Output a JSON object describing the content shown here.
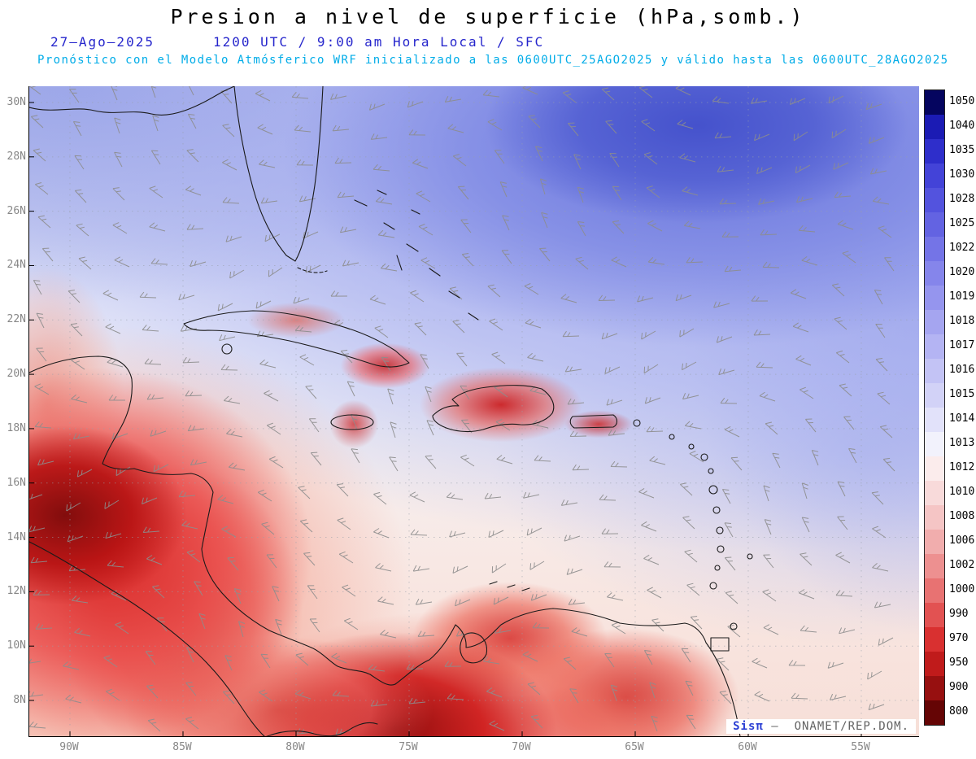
{
  "header": {
    "title": "Presion a nivel de superficie (hPa,somb.)",
    "date_label": "27–Ago–2025",
    "time_label": "1200 UTC / 9:00 am Hora Local / SFC",
    "forecast_line": "Pronóstico con el Modelo Atmósferico WRF inicializado a las 0600UTC_25AGO2025 y válido hasta las  0600UTC_28AGO2025"
  },
  "map": {
    "lat_labels": [
      "30N",
      "28N",
      "26N",
      "24N",
      "22N",
      "20N",
      "18N",
      "16N",
      "14N",
      "12N",
      "10N",
      "8N"
    ],
    "lon_labels": [
      "90W",
      "85W",
      "80W",
      "75W",
      "70W",
      "65W",
      "60W",
      "55W"
    ],
    "credit_prefix": "Sisπ",
    "credit_suffix": "—  ONAMET/REP.DOM."
  },
  "colorbar": {
    "unit": "hPa",
    "levels": [
      {
        "label": "1050",
        "color": "#05055f"
      },
      {
        "label": "1040",
        "color": "#1b1bb4"
      },
      {
        "label": "1035",
        "color": "#2e2ecb"
      },
      {
        "label": "1030",
        "color": "#4343d8"
      },
      {
        "label": "1028",
        "color": "#5353de"
      },
      {
        "label": "1025",
        "color": "#6363e2"
      },
      {
        "label": "1022",
        "color": "#7474e7"
      },
      {
        "label": "1020",
        "color": "#8585eb"
      },
      {
        "label": "1019",
        "color": "#9595ee"
      },
      {
        "label": "1018",
        "color": "#a5a5f0"
      },
      {
        "label": "1017",
        "color": "#b4b4f3"
      },
      {
        "label": "1016",
        "color": "#c3c3f5"
      },
      {
        "label": "1015",
        "color": "#d2d2f7"
      },
      {
        "label": "1014",
        "color": "#e2e2fa"
      },
      {
        "label": "1013",
        "color": "#f2f2fc"
      },
      {
        "label": "1012",
        "color": "#fbecec"
      },
      {
        "label": "1010",
        "color": "#f8dada"
      },
      {
        "label": "1008",
        "color": "#f5c5c5"
      },
      {
        "label": "1006",
        "color": "#f1adad"
      },
      {
        "label": "1002",
        "color": "#ed9090"
      },
      {
        "label": "1000",
        "color": "#e87272"
      },
      {
        "label": "990",
        "color": "#e25252"
      },
      {
        "label": "970",
        "color": "#d93030"
      },
      {
        "label": "950",
        "color": "#c01b1b"
      },
      {
        "label": "900",
        "color": "#971010"
      },
      {
        "label": "800",
        "color": "#650505"
      }
    ]
  }
}
